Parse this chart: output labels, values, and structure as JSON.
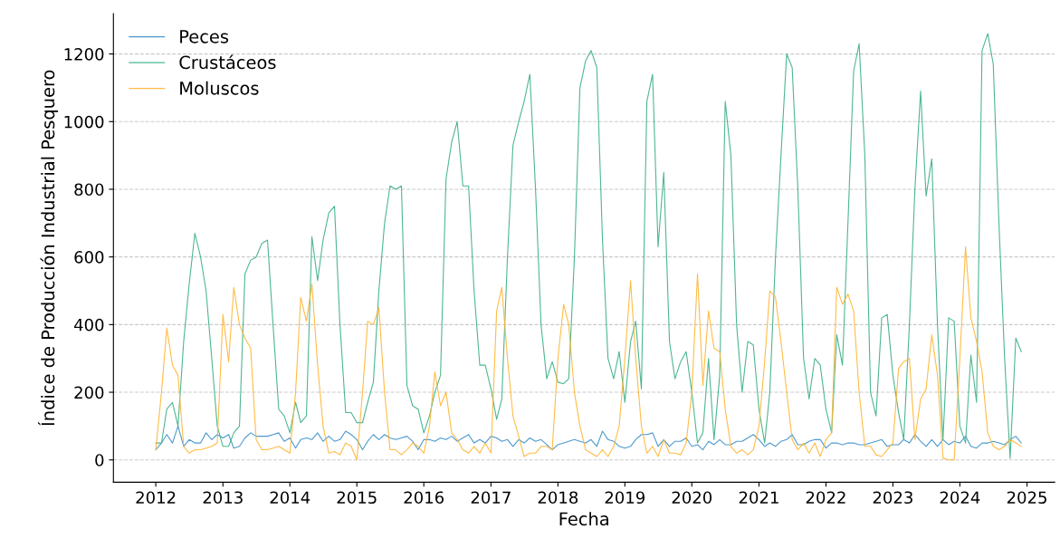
{
  "chart_data": {
    "type": "line",
    "xlabel": "Fecha",
    "ylabel": "Índice de Producción Industrial Pesquero",
    "x": [
      "2012-01",
      "2012-02",
      "2012-03",
      "2012-04",
      "2012-05",
      "2012-06",
      "2012-07",
      "2012-08",
      "2012-09",
      "2012-10",
      "2012-11",
      "2012-12",
      "2013-01",
      "2013-02",
      "2013-03",
      "2013-04",
      "2013-05",
      "2013-06",
      "2013-07",
      "2013-08",
      "2013-09",
      "2013-10",
      "2013-11",
      "2013-12",
      "2014-01",
      "2014-02",
      "2014-03",
      "2014-04",
      "2014-05",
      "2014-06",
      "2014-07",
      "2014-08",
      "2014-09",
      "2014-10",
      "2014-11",
      "2014-12",
      "2015-01",
      "2015-02",
      "2015-03",
      "2015-04",
      "2015-05",
      "2015-06",
      "2015-07",
      "2015-08",
      "2015-09",
      "2015-10",
      "2015-11",
      "2015-12",
      "2016-01",
      "2016-02",
      "2016-03",
      "2016-04",
      "2016-05",
      "2016-06",
      "2016-07",
      "2016-08",
      "2016-09",
      "2016-10",
      "2016-11",
      "2016-12",
      "2017-01",
      "2017-02",
      "2017-03",
      "2017-04",
      "2017-05",
      "2017-06",
      "2017-07",
      "2017-08",
      "2017-09",
      "2017-10",
      "2017-11",
      "2017-12",
      "2018-01",
      "2018-02",
      "2018-03",
      "2018-04",
      "2018-05",
      "2018-06",
      "2018-07",
      "2018-08",
      "2018-09",
      "2018-10",
      "2018-11",
      "2018-12",
      "2019-01",
      "2019-02",
      "2019-03",
      "2019-04",
      "2019-05",
      "2019-06",
      "2019-07",
      "2019-08",
      "2019-09",
      "2019-10",
      "2019-11",
      "2019-12",
      "2020-01",
      "2020-02",
      "2020-03",
      "2020-04",
      "2020-05",
      "2020-06",
      "2020-07",
      "2020-08",
      "2020-09",
      "2020-10",
      "2020-11",
      "2020-12",
      "2021-01",
      "2021-02",
      "2021-03",
      "2021-04",
      "2021-05",
      "2021-06",
      "2021-07",
      "2021-08",
      "2021-09",
      "2021-10",
      "2021-11",
      "2021-12",
      "2022-01",
      "2022-02",
      "2022-03",
      "2022-04",
      "2022-05",
      "2022-06",
      "2022-07",
      "2022-08",
      "2022-09",
      "2022-10",
      "2022-11",
      "2022-12",
      "2023-01",
      "2023-02",
      "2023-03",
      "2023-04",
      "2023-05",
      "2023-06",
      "2023-07",
      "2023-08",
      "2023-09",
      "2023-10",
      "2023-11",
      "2023-12",
      "2024-01",
      "2024-02",
      "2024-03",
      "2024-04",
      "2024-05",
      "2024-06",
      "2024-07",
      "2024-08",
      "2024-09",
      "2024-10",
      "2024-11",
      "2024-12"
    ],
    "series": [
      {
        "name": "Peces",
        "color": "#3a8fc8",
        "values": [
          30,
          50,
          75,
          50,
          100,
          40,
          60,
          50,
          50,
          80,
          60,
          75,
          65,
          75,
          35,
          40,
          65,
          80,
          70,
          70,
          70,
          75,
          80,
          55,
          65,
          35,
          60,
          65,
          60,
          80,
          55,
          70,
          55,
          60,
          85,
          75,
          60,
          30,
          55,
          75,
          60,
          75,
          65,
          60,
          65,
          70,
          55,
          30,
          60,
          60,
          55,
          65,
          60,
          70,
          55,
          65,
          75,
          50,
          60,
          50,
          70,
          65,
          55,
          60,
          40,
          60,
          50,
          65,
          55,
          60,
          45,
          30,
          45,
          50,
          55,
          60,
          55,
          50,
          60,
          40,
          85,
          60,
          55,
          40,
          35,
          40,
          60,
          75,
          75,
          80,
          40,
          60,
          40,
          55,
          55,
          65,
          40,
          45,
          30,
          55,
          45,
          60,
          45,
          45,
          55,
          55,
          65,
          75,
          60,
          40,
          50,
          40,
          55,
          60,
          75,
          45,
          45,
          55,
          60,
          60,
          35,
          50,
          50,
          45,
          50,
          50,
          45,
          45,
          50,
          55,
          60,
          40,
          45,
          45,
          60,
          50,
          75,
          55,
          40,
          60,
          40,
          60,
          45,
          55,
          50,
          70,
          40,
          35,
          50,
          50,
          55,
          50,
          45,
          60,
          70,
          50
        ]
      },
      {
        "name": "Crustáceos",
        "color": "#3aaf85",
        "values": [
          50,
          50,
          150,
          170,
          100,
          350,
          520,
          670,
          600,
          500,
          300,
          100,
          40,
          40,
          80,
          100,
          550,
          590,
          600,
          640,
          650,
          400,
          150,
          130,
          80,
          170,
          110,
          130,
          660,
          530,
          650,
          730,
          750,
          400,
          140,
          140,
          110,
          110,
          170,
          230,
          500,
          700,
          810,
          800,
          810,
          220,
          160,
          150,
          80,
          130,
          200,
          250,
          830,
          940,
          1000,
          810,
          810,
          500,
          280,
          280,
          210,
          120,
          180,
          600,
          930,
          1000,
          1060,
          1140,
          800,
          400,
          240,
          290,
          230,
          225,
          240,
          600,
          1100,
          1180,
          1210,
          1160,
          650,
          300,
          240,
          320,
          170,
          350,
          410,
          210,
          1060,
          1140,
          630,
          850,
          350,
          240,
          290,
          320,
          200,
          50,
          80,
          300,
          60,
          250,
          1060,
          900,
          400,
          200,
          350,
          340,
          150,
          50,
          200,
          600,
          900,
          1200,
          1160,
          800,
          300,
          180,
          300,
          280,
          150,
          80,
          370,
          280,
          700,
          1150,
          1230,
          900,
          200,
          130,
          420,
          430,
          250,
          140,
          60,
          400,
          800,
          1090,
          780,
          890,
          400,
          60,
          420,
          410,
          100,
          50,
          310,
          170,
          1210,
          1260,
          1170,
          700,
          300,
          5,
          360,
          320
        ]
      },
      {
        "name": "Moluscos",
        "color": "#ffb533",
        "values": [
          30,
          200,
          390,
          280,
          250,
          40,
          20,
          30,
          30,
          35,
          40,
          50,
          430,
          290,
          510,
          400,
          360,
          330,
          60,
          30,
          30,
          35,
          40,
          30,
          20,
          200,
          480,
          410,
          520,
          280,
          100,
          20,
          25,
          15,
          50,
          40,
          0,
          200,
          410,
          400,
          450,
          200,
          30,
          30,
          15,
          30,
          50,
          40,
          20,
          100,
          260,
          160,
          200,
          80,
          60,
          30,
          20,
          40,
          20,
          50,
          20,
          440,
          510,
          300,
          130,
          70,
          10,
          20,
          20,
          40,
          40,
          30,
          300,
          460,
          400,
          200,
          100,
          30,
          20,
          10,
          30,
          10,
          40,
          100,
          300,
          530,
          300,
          100,
          20,
          40,
          10,
          60,
          20,
          20,
          15,
          50,
          200,
          550,
          220,
          440,
          330,
          320,
          150,
          40,
          20,
          30,
          15,
          30,
          100,
          290,
          500,
          480,
          350,
          200,
          60,
          30,
          50,
          20,
          50,
          10,
          60,
          80,
          510,
          460,
          490,
          440,
          200,
          40,
          40,
          15,
          10,
          30,
          50,
          270,
          290,
          300,
          60,
          180,
          210,
          370,
          250,
          5,
          0,
          0,
          300,
          630,
          420,
          350,
          260,
          80,
          40,
          30,
          40,
          60,
          50,
          40
        ]
      }
    ],
    "xlim": [
      "2011-05-15",
      "2025-06-01"
    ],
    "xticks": [
      "2012",
      "2013",
      "2014",
      "2015",
      "2016",
      "2017",
      "2018",
      "2019",
      "2020",
      "2021",
      "2022",
      "2023",
      "2024",
      "2025"
    ],
    "ylim": [
      -66,
      1319
    ],
    "yticks": [
      0,
      200,
      400,
      600,
      800,
      1000,
      1200
    ],
    "grid": "y",
    "legend": "top left",
    "line_style": "solid",
    "marker": "none"
  }
}
